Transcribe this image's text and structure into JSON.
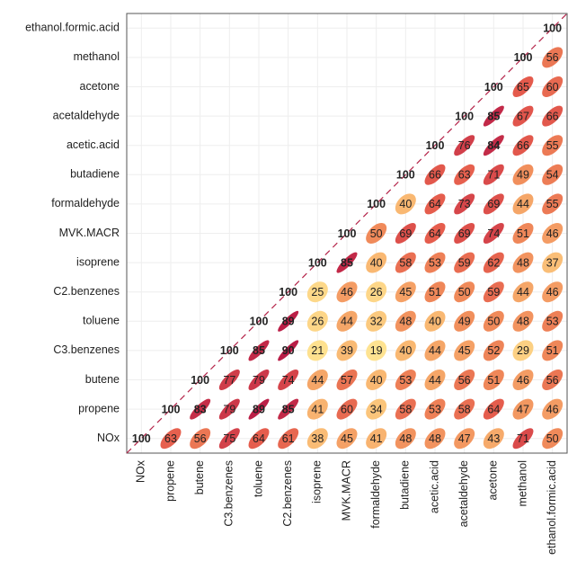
{
  "chart_data": {
    "type": "correlation",
    "categories": [
      "NOx",
      "propene",
      "butene",
      "C3.benzenes",
      "toluene",
      "C2.benzenes",
      "isoprene",
      "MVK.MACR",
      "formaldehyde",
      "butadiene",
      "acetic.acid",
      "acetaldehyde",
      "acetone",
      "methanol",
      "ethanol.formic.acid"
    ],
    "matrix": [
      [
        100,
        63,
        56,
        75,
        64,
        61,
        38,
        45,
        41,
        48,
        48,
        47,
        43,
        71,
        50
      ],
      [
        null,
        100,
        83,
        79,
        89,
        85,
        41,
        60,
        34,
        58,
        53,
        58,
        64,
        47,
        46
      ],
      [
        null,
        null,
        100,
        77,
        79,
        74,
        44,
        57,
        40,
        53,
        44,
        56,
        51,
        46,
        56
      ],
      [
        null,
        null,
        null,
        100,
        85,
        90,
        21,
        39,
        19,
        40,
        44,
        45,
        52,
        29,
        51
      ],
      [
        null,
        null,
        null,
        null,
        100,
        89,
        26,
        44,
        32,
        48,
        40,
        49,
        50,
        48,
        53
      ],
      [
        null,
        null,
        null,
        null,
        null,
        100,
        25,
        46,
        26,
        45,
        51,
        50,
        59,
        44,
        46
      ],
      [
        null,
        null,
        null,
        null,
        null,
        null,
        100,
        85,
        40,
        58,
        53,
        59,
        62,
        48,
        37
      ],
      [
        null,
        null,
        null,
        null,
        null,
        null,
        null,
        100,
        50,
        69,
        64,
        69,
        74,
        51,
        46
      ],
      [
        null,
        null,
        null,
        null,
        null,
        null,
        null,
        null,
        100,
        40,
        64,
        73,
        69,
        44,
        55
      ],
      [
        null,
        null,
        null,
        null,
        null,
        null,
        null,
        null,
        null,
        100,
        66,
        63,
        71,
        49,
        54
      ],
      [
        null,
        null,
        null,
        null,
        null,
        null,
        null,
        null,
        null,
        null,
        100,
        76,
        84,
        66,
        55
      ],
      [
        null,
        null,
        null,
        null,
        null,
        null,
        null,
        null,
        null,
        null,
        null,
        100,
        85,
        67,
        66
      ],
      [
        null,
        null,
        null,
        null,
        null,
        null,
        null,
        null,
        null,
        null,
        null,
        null,
        100,
        65,
        60
      ],
      [
        null,
        null,
        null,
        null,
        null,
        null,
        null,
        null,
        null,
        null,
        null,
        null,
        null,
        100,
        56
      ],
      [
        null,
        null,
        null,
        null,
        null,
        null,
        null,
        null,
        null,
        null,
        null,
        null,
        null,
        null,
        100
      ]
    ]
  }
}
